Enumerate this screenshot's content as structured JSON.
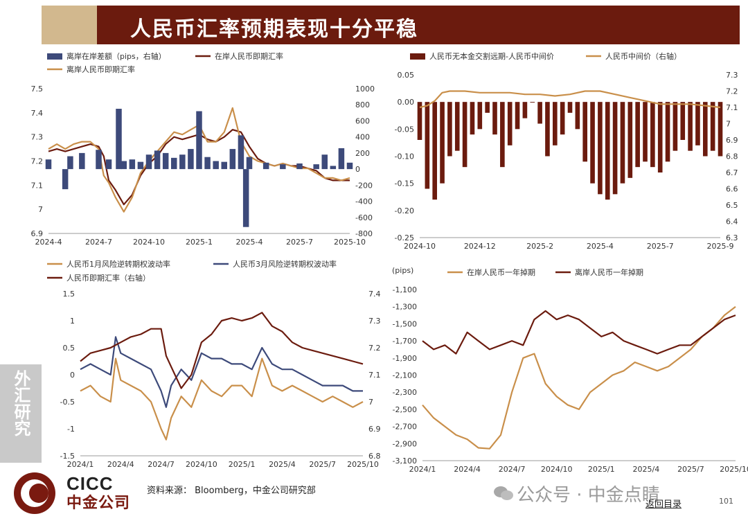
{
  "header": {
    "title": "人民币汇率预期表现十分平稳"
  },
  "side_tab": {
    "label": "外汇研究"
  },
  "footer": {
    "source": "资料来源： Bloomberg，中金公司研究部",
    "logo_en": "CICC",
    "logo_cn": "中金公司",
    "watermark": "公众号 · 中金点睛",
    "back_link": "返回目录",
    "page_number": "101"
  },
  "colors": {
    "brand": "#6b1b0e",
    "gold": "#c98f4a",
    "dark_red": "#7a1a10",
    "navy": "#3d4a7a"
  },
  "chart_data": [
    {
      "id": "c1",
      "type": "line",
      "legend": [
        "离岸在岸差额（pips，右轴）",
        "在岸人民币即期汇率",
        "离岸人民币即期汇率"
      ],
      "x_ticks": [
        "2024-4",
        "2024-7",
        "2024-10",
        "2025-1",
        "2025-4",
        "2025-7",
        "2025-10"
      ],
      "y_left_ticks": [
        "7.5",
        "7.4",
        "7.3",
        "7.2",
        "7.1",
        "7",
        "6.9"
      ],
      "y_right_ticks": [
        "1000",
        "800",
        "600",
        "400",
        "200",
        "0",
        "-200",
        "-400",
        "-600",
        "-800"
      ],
      "ylim_left": [
        6.9,
        7.5
      ],
      "ylim_right": [
        -800,
        1000
      ],
      "series": [
        {
          "name": "在岸人民币即期汇率",
          "axis": "left",
          "color": "#6b1b0e",
          "x": [
            0,
            0.5,
            1,
            1.5,
            2,
            2.5,
            3,
            3.3,
            3.6,
            4,
            4.5,
            5,
            5.5,
            6,
            6.5,
            7,
            7.5,
            8,
            8.5,
            9,
            9.5,
            10,
            10.5,
            11,
            11.5,
            12,
            12.5,
            13,
            13.5,
            14,
            14.5,
            15,
            15.5,
            16,
            16.5,
            17,
            17.5,
            18
          ],
          "values": [
            7.24,
            7.25,
            7.24,
            7.25,
            7.26,
            7.27,
            7.26,
            7.22,
            7.12,
            7.08,
            7.02,
            7.06,
            7.14,
            7.19,
            7.22,
            7.27,
            7.3,
            7.29,
            7.3,
            7.31,
            7.29,
            7.28,
            7.3,
            7.33,
            7.32,
            7.26,
            7.21,
            7.19,
            7.18,
            7.19,
            7.18,
            7.18,
            7.17,
            7.16,
            7.13,
            7.12,
            7.12,
            7.12
          ]
        },
        {
          "name": "离岸人民币即期汇率",
          "axis": "left",
          "color": "#c98f4a",
          "x": [
            0,
            0.5,
            1,
            1.5,
            2,
            2.5,
            3,
            3.3,
            3.6,
            4,
            4.5,
            5,
            5.5,
            6,
            6.5,
            7,
            7.5,
            8,
            8.5,
            9,
            9.5,
            10,
            10.5,
            11,
            11.5,
            12,
            12.5,
            13,
            13.5,
            14,
            14.5,
            15,
            15.5,
            16,
            16.5,
            17,
            17.5,
            18
          ],
          "values": [
            7.25,
            7.27,
            7.25,
            7.27,
            7.28,
            7.28,
            7.25,
            7.14,
            7.11,
            7.05,
            6.99,
            7.05,
            7.15,
            7.2,
            7.24,
            7.28,
            7.32,
            7.31,
            7.33,
            7.35,
            7.28,
            7.28,
            7.32,
            7.42,
            7.28,
            7.22,
            7.2,
            7.19,
            7.18,
            7.19,
            7.18,
            7.17,
            7.17,
            7.15,
            7.13,
            7.13,
            7.12,
            7.13
          ]
        },
        {
          "name": "离岸在岸差额（pips，右轴）",
          "axis": "right",
          "kind": "bar",
          "color": "#3d4a7a",
          "x": [
            0,
            1,
            1.3,
            2,
            3,
            3.6,
            4.2,
            4.5,
            5,
            5.5,
            6,
            6.5,
            7,
            7.5,
            8,
            8.5,
            9,
            9.5,
            10,
            10.5,
            11,
            11.5,
            11.8,
            12,
            13,
            14,
            15,
            16,
            16.5,
            17,
            17.5,
            18
          ],
          "values": [
            120,
            -250,
            160,
            200,
            240,
            120,
            750,
            100,
            120,
            90,
            180,
            230,
            200,
            140,
            180,
            250,
            720,
            150,
            100,
            90,
            250,
            420,
            -720,
            150,
            80,
            60,
            70,
            60,
            180,
            40,
            260,
            80
          ]
        }
      ]
    },
    {
      "id": "c2",
      "type": "bar",
      "legend": [
        "人民币无本金交割远期-人民币中间价",
        "人民币中间价（右轴）"
      ],
      "x_ticks": [
        "2024-10",
        "2024-12",
        "2025-2",
        "2025-4",
        "2025-7",
        "2025-9"
      ],
      "y_left_ticks": [
        "0.05",
        "0.00",
        "-0.05",
        "-0.10",
        "-0.15",
        "-0.20",
        "-0.25"
      ],
      "y_right_ticks": [
        "7.3",
        "7.2",
        "7.1",
        "7",
        "6.9",
        "6.8",
        "6.7",
        "6.6",
        "6.5",
        "6.4",
        "6.3"
      ],
      "ylim_left": [
        -0.25,
        0.05
      ],
      "ylim_right": [
        6.3,
        7.3
      ],
      "series": [
        {
          "name": "人民币无本金交割远期-人民币中间价",
          "axis": "left",
          "kind": "bar",
          "color": "#6b1b0e",
          "x": [
            0,
            0.5,
            1,
            1.5,
            2,
            2.5,
            3,
            3.5,
            4,
            4.5,
            5,
            5.5,
            6,
            6.5,
            7,
            7.5,
            8,
            8.5,
            9,
            9.5,
            10,
            10.5,
            11,
            11.5,
            12,
            12.5,
            13,
            13.5,
            14,
            14.5,
            15,
            15.5,
            16,
            16.5,
            17,
            17.5,
            18,
            18.5,
            19,
            19.5,
            20
          ],
          "values": [
            -0.07,
            -0.16,
            -0.18,
            -0.15,
            -0.1,
            -0.09,
            -0.12,
            -0.06,
            -0.05,
            -0.02,
            -0.06,
            -0.12,
            -0.08,
            -0.05,
            -0.03,
            0.0,
            -0.04,
            -0.1,
            -0.08,
            -0.06,
            -0.02,
            -0.05,
            -0.11,
            -0.15,
            -0.17,
            -0.18,
            -0.17,
            -0.15,
            -0.14,
            -0.12,
            -0.11,
            -0.12,
            -0.13,
            -0.11,
            -0.09,
            -0.07,
            -0.09,
            -0.08,
            -0.1,
            -0.09,
            -0.1
          ]
        },
        {
          "name": "人民币中间价（右轴）",
          "axis": "right",
          "color": "#c98f4a",
          "x": [
            0,
            0.5,
            1,
            1.5,
            2,
            3,
            4,
            5,
            6,
            7,
            8,
            9,
            10,
            11,
            12,
            13,
            14,
            15,
            16,
            17,
            18,
            19,
            20
          ],
          "values": [
            7.1,
            7.11,
            7.14,
            7.19,
            7.2,
            7.2,
            7.19,
            7.19,
            7.19,
            7.18,
            7.18,
            7.17,
            7.18,
            7.2,
            7.2,
            7.18,
            7.16,
            7.14,
            7.12,
            7.12,
            7.12,
            7.11,
            7.1
          ]
        }
      ]
    },
    {
      "id": "c3",
      "type": "line",
      "legend": [
        "人民币1月风险逆转期权波动率",
        "人民币3月风险逆转期权波动率",
        "人民币即期汇率（右轴）"
      ],
      "x_ticks": [
        "2024/1",
        "2024/4",
        "2024/7",
        "2024/10",
        "2025/1",
        "2025/4",
        "2025/7",
        "2025/10"
      ],
      "y_left_ticks": [
        "1.5",
        "1",
        "0.5",
        "0",
        "-0.5",
        "-1",
        "-1.5"
      ],
      "y_right_ticks": [
        "7.4",
        "7.3",
        "7.2",
        "7.1",
        "7",
        "6.9",
        "6.8"
      ],
      "ylim_left": [
        -1.5,
        1.5
      ],
      "ylim_right": [
        6.8,
        7.4
      ],
      "series": [
        {
          "name": "人民币1月风险逆转期权波动率",
          "axis": "left",
          "color": "#c98f4a",
          "x": [
            0,
            1,
            2,
            3,
            3.5,
            4,
            5,
            6,
            7,
            8,
            8.5,
            9,
            10,
            11,
            12,
            13,
            14,
            15,
            16,
            17,
            18,
            19,
            20,
            21,
            22,
            23,
            24,
            25,
            26,
            27,
            28
          ],
          "values": [
            -0.3,
            -0.2,
            -0.4,
            -0.5,
            0.3,
            -0.1,
            -0.2,
            -0.3,
            -0.5,
            -1.0,
            -1.2,
            -0.8,
            -0.4,
            -0.6,
            -0.1,
            -0.3,
            -0.4,
            -0.2,
            -0.2,
            -0.4,
            0.3,
            -0.2,
            -0.3,
            -0.2,
            -0.3,
            -0.4,
            -0.5,
            -0.4,
            -0.5,
            -0.6,
            -0.5
          ]
        },
        {
          "name": "人民币3月风险逆转期权波动率",
          "axis": "left",
          "color": "#3d4a7a",
          "x": [
            0,
            1,
            2,
            3,
            3.5,
            4,
            5,
            6,
            7,
            8,
            8.5,
            9,
            10,
            11,
            12,
            13,
            14,
            15,
            16,
            17,
            18,
            19,
            20,
            21,
            22,
            23,
            24,
            25,
            26,
            27,
            28
          ],
          "values": [
            0.1,
            0.2,
            0.1,
            0.0,
            0.7,
            0.4,
            0.3,
            0.2,
            0.1,
            -0.3,
            -0.6,
            -0.2,
            0.1,
            -0.1,
            0.4,
            0.3,
            0.3,
            0.2,
            0.2,
            0.1,
            0.5,
            0.2,
            0.1,
            0.1,
            0.0,
            -0.1,
            -0.2,
            -0.2,
            -0.2,
            -0.3,
            -0.3
          ]
        },
        {
          "name": "人民币即期汇率（右轴）",
          "axis": "right",
          "color": "#6b1b0e",
          "x": [
            0,
            1,
            2,
            3,
            4,
            5,
            6,
            7,
            8,
            8.5,
            9,
            10,
            11,
            12,
            13,
            14,
            15,
            16,
            17,
            18,
            19,
            20,
            21,
            22,
            23,
            24,
            25,
            26,
            27,
            28
          ],
          "values": [
            7.15,
            7.18,
            7.19,
            7.2,
            7.22,
            7.24,
            7.25,
            7.27,
            7.27,
            7.17,
            7.13,
            7.05,
            7.1,
            7.22,
            7.25,
            7.3,
            7.31,
            7.3,
            7.31,
            7.33,
            7.28,
            7.26,
            7.22,
            7.2,
            7.19,
            7.18,
            7.17,
            7.16,
            7.15,
            7.14
          ]
        }
      ]
    },
    {
      "id": "c4",
      "type": "line",
      "legend": [
        "在岸人民币一年掉期",
        "离岸人民币一年掉期"
      ],
      "unit_label": "(pips)",
      "x_ticks": [
        "2024/1",
        "2024/4",
        "2024/7",
        "2024/10",
        "2025/1",
        "2025/4",
        "2025/7",
        "2025/10"
      ],
      "y_left_ticks": [
        "-1,100",
        "-1,300",
        "-1,500",
        "-1,700",
        "-1,900",
        "-2,100",
        "-2,300",
        "-2,500",
        "-2,700",
        "-2,900",
        "-3,100"
      ],
      "ylim_left": [
        -3100,
        -1100
      ],
      "series": [
        {
          "name": "在岸人民币一年掉期",
          "axis": "left",
          "color": "#c98f4a",
          "x": [
            0,
            1,
            2,
            3,
            4,
            5,
            6,
            7,
            8,
            9,
            10,
            11,
            12,
            13,
            14,
            15,
            16,
            17,
            18,
            19,
            20,
            21,
            22,
            23,
            24,
            25,
            26,
            27,
            28
          ],
          "values": [
            -2450,
            -2600,
            -2700,
            -2800,
            -2850,
            -2950,
            -2960,
            -2800,
            -2300,
            -1900,
            -1850,
            -2200,
            -2350,
            -2450,
            -2500,
            -2300,
            -2200,
            -2100,
            -2050,
            -1950,
            -2000,
            -2050,
            -2000,
            -1900,
            -1800,
            -1650,
            -1550,
            -1400,
            -1300
          ]
        },
        {
          "name": "离岸人民币一年掉期",
          "axis": "left",
          "color": "#6b1b0e",
          "x": [
            0,
            1,
            2,
            3,
            4,
            5,
            6,
            7,
            8,
            9,
            10,
            11,
            12,
            13,
            14,
            15,
            16,
            17,
            18,
            19,
            20,
            21,
            22,
            23,
            24,
            25,
            26,
            27,
            28
          ],
          "values": [
            -1700,
            -1800,
            -1750,
            -1850,
            -1600,
            -1700,
            -1800,
            -1750,
            -1700,
            -1750,
            -1450,
            -1350,
            -1450,
            -1400,
            -1450,
            -1550,
            -1650,
            -1600,
            -1700,
            -1750,
            -1800,
            -1850,
            -1800,
            -1750,
            -1750,
            -1650,
            -1550,
            -1450,
            -1400
          ]
        }
      ]
    }
  ]
}
